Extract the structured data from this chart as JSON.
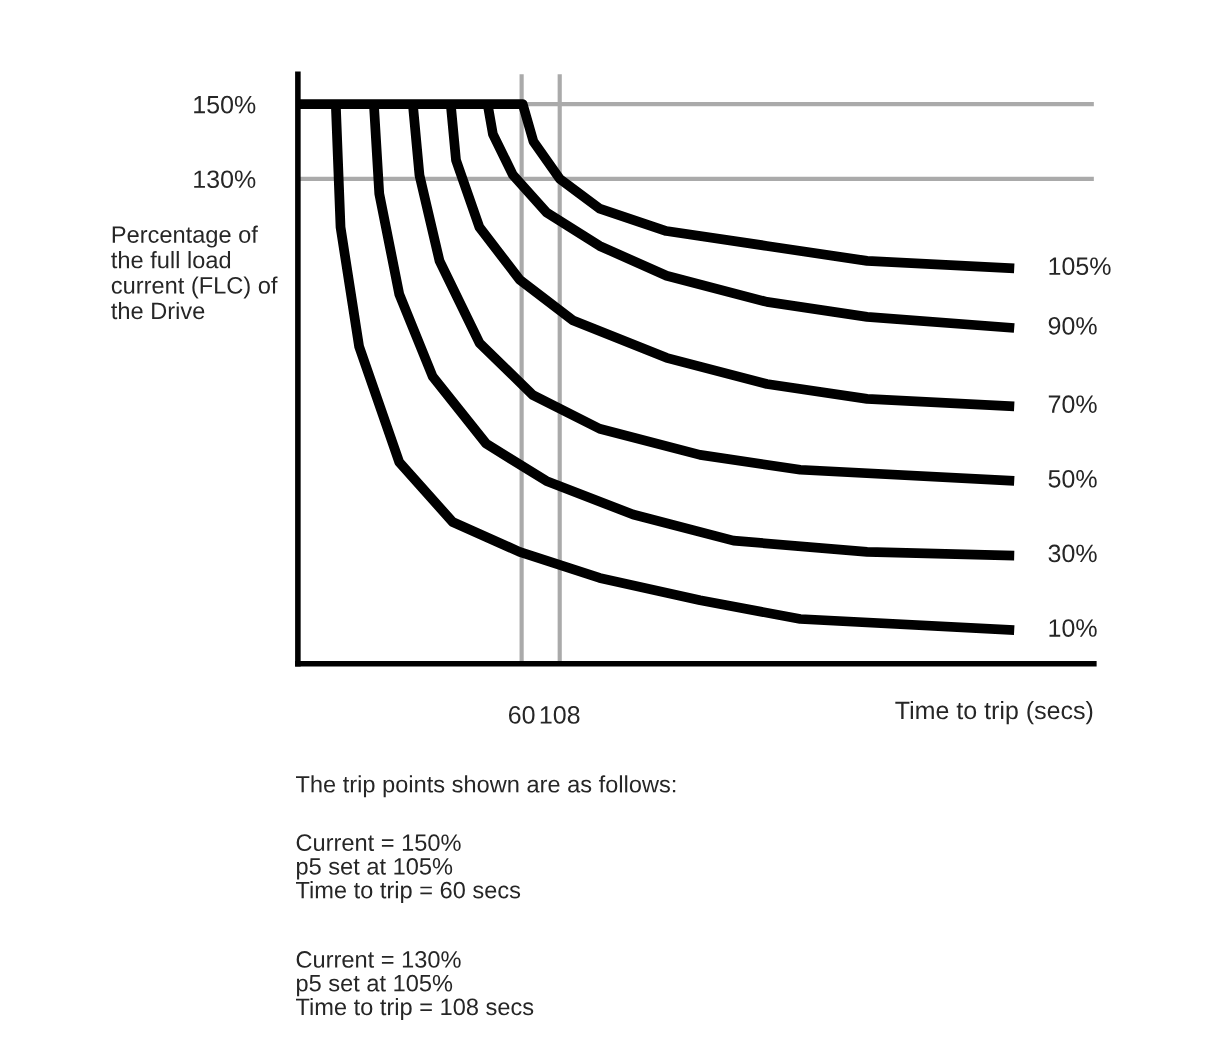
{
  "chart_data": {
    "type": "line",
    "xlabel": "Time to trip (secs)",
    "ylabel": "Percentage of\nthe full load\ncurrent (FLC) of\nthe Drive",
    "log": "x",
    "xlim": [
      1.9,
      410000
    ],
    "ylim": [
      0,
      158
    ],
    "xticks": [
      60,
      108
    ],
    "yticks": [
      {
        "value": 150,
        "label": "150%"
      },
      {
        "value": 130,
        "label": "130%"
      }
    ],
    "grid": false,
    "legend": false,
    "marker": "none",
    "line_style": "solid",
    "ref_lines": [
      {
        "axis": "y",
        "value": 150,
        "color": "#aaaaaa"
      },
      {
        "axis": "y",
        "value": 130,
        "color": "#aaaaaa"
      },
      {
        "axis": "x",
        "value": 60,
        "color": "#aaaaaa"
      },
      {
        "axis": "x",
        "value": 108,
        "color": "#aaaaaa"
      }
    ],
    "series": [
      {
        "name": "105%",
        "color": "#000000",
        "x": [
          1.9,
          61,
          72,
          108,
          200,
          560,
          2640,
          12400,
          120000
        ],
        "values": [
          150,
          150,
          140,
          130,
          122,
          116,
          112,
          108,
          106
        ]
      },
      {
        "name": "90%",
        "color": "#000000",
        "x": [
          35.5,
          38.5,
          52.5,
          87.9,
          200,
          562,
          2640,
          12400,
          120000
        ],
        "values": [
          150,
          142,
          131,
          121,
          112,
          104,
          97,
          93,
          90
        ]
      },
      {
        "name": "70%",
        "color": "#000000",
        "x": [
          20.1,
          21.8,
          31.3,
          58.1,
          133,
          562,
          2640,
          12400,
          120000
        ],
        "values": [
          150,
          135,
          117,
          103,
          92,
          82,
          75,
          71,
          69
        ]
      },
      {
        "name": "50%",
        "color": "#000000",
        "x": [
          11.2,
          12.4,
          16.9,
          31.3,
          71.5,
          200,
          942,
          4420,
          120000
        ],
        "values": [
          150,
          131,
          108,
          86,
          72,
          63,
          56,
          52,
          49
        ]
      },
      {
        "name": "30%",
        "color": "#000000",
        "x": [
          6.14,
          6.67,
          9.09,
          15.2,
          34.7,
          87.9,
          335,
          1576,
          12400,
          120000
        ],
        "values": [
          150,
          126,
          99,
          77,
          59,
          49,
          40,
          33,
          30,
          29
        ]
      },
      {
        "name": "10%",
        "color": "#000000",
        "x": [
          3.41,
          3.67,
          4.89,
          9.09,
          20.7,
          58.1,
          200,
          942,
          4420,
          120000
        ],
        "values": [
          150,
          117,
          85,
          54,
          38,
          30,
          23,
          17,
          12,
          9
        ]
      }
    ],
    "annotations": [
      "The trip points shown are as follows:",
      "Current = 150%\np5 set at 105%\nTime to trip = 60 secs",
      "Current = 130%\np5 set at 105%\nTime to trip = 108 secs"
    ]
  }
}
